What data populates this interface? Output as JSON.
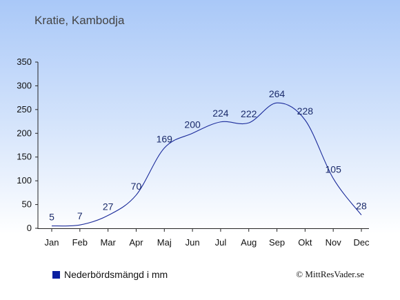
{
  "chart_data": {
    "type": "line",
    "title": "Kratie, Kambodja",
    "categories": [
      "Jan",
      "Feb",
      "Mar",
      "Apr",
      "Maj",
      "Jun",
      "Jul",
      "Aug",
      "Sep",
      "Okt",
      "Nov",
      "Dec"
    ],
    "series": [
      {
        "name": "Nederbördsmängd i mm",
        "values": [
          5,
          7,
          27,
          70,
          169,
          200,
          224,
          222,
          264,
          228,
          105,
          28
        ],
        "color": "#1a2a9a"
      }
    ],
    "ylim": [
      0,
      350
    ],
    "yticks": [
      0,
      50,
      100,
      150,
      200,
      250,
      300,
      350
    ],
    "xlabel": "",
    "ylabel": "",
    "grid": false,
    "legend_position": "bottom-left"
  },
  "legend": {
    "label": "Nederbördsmängd i mm",
    "color": "#0a1fa0"
  },
  "credit": "© MittResVader.se"
}
